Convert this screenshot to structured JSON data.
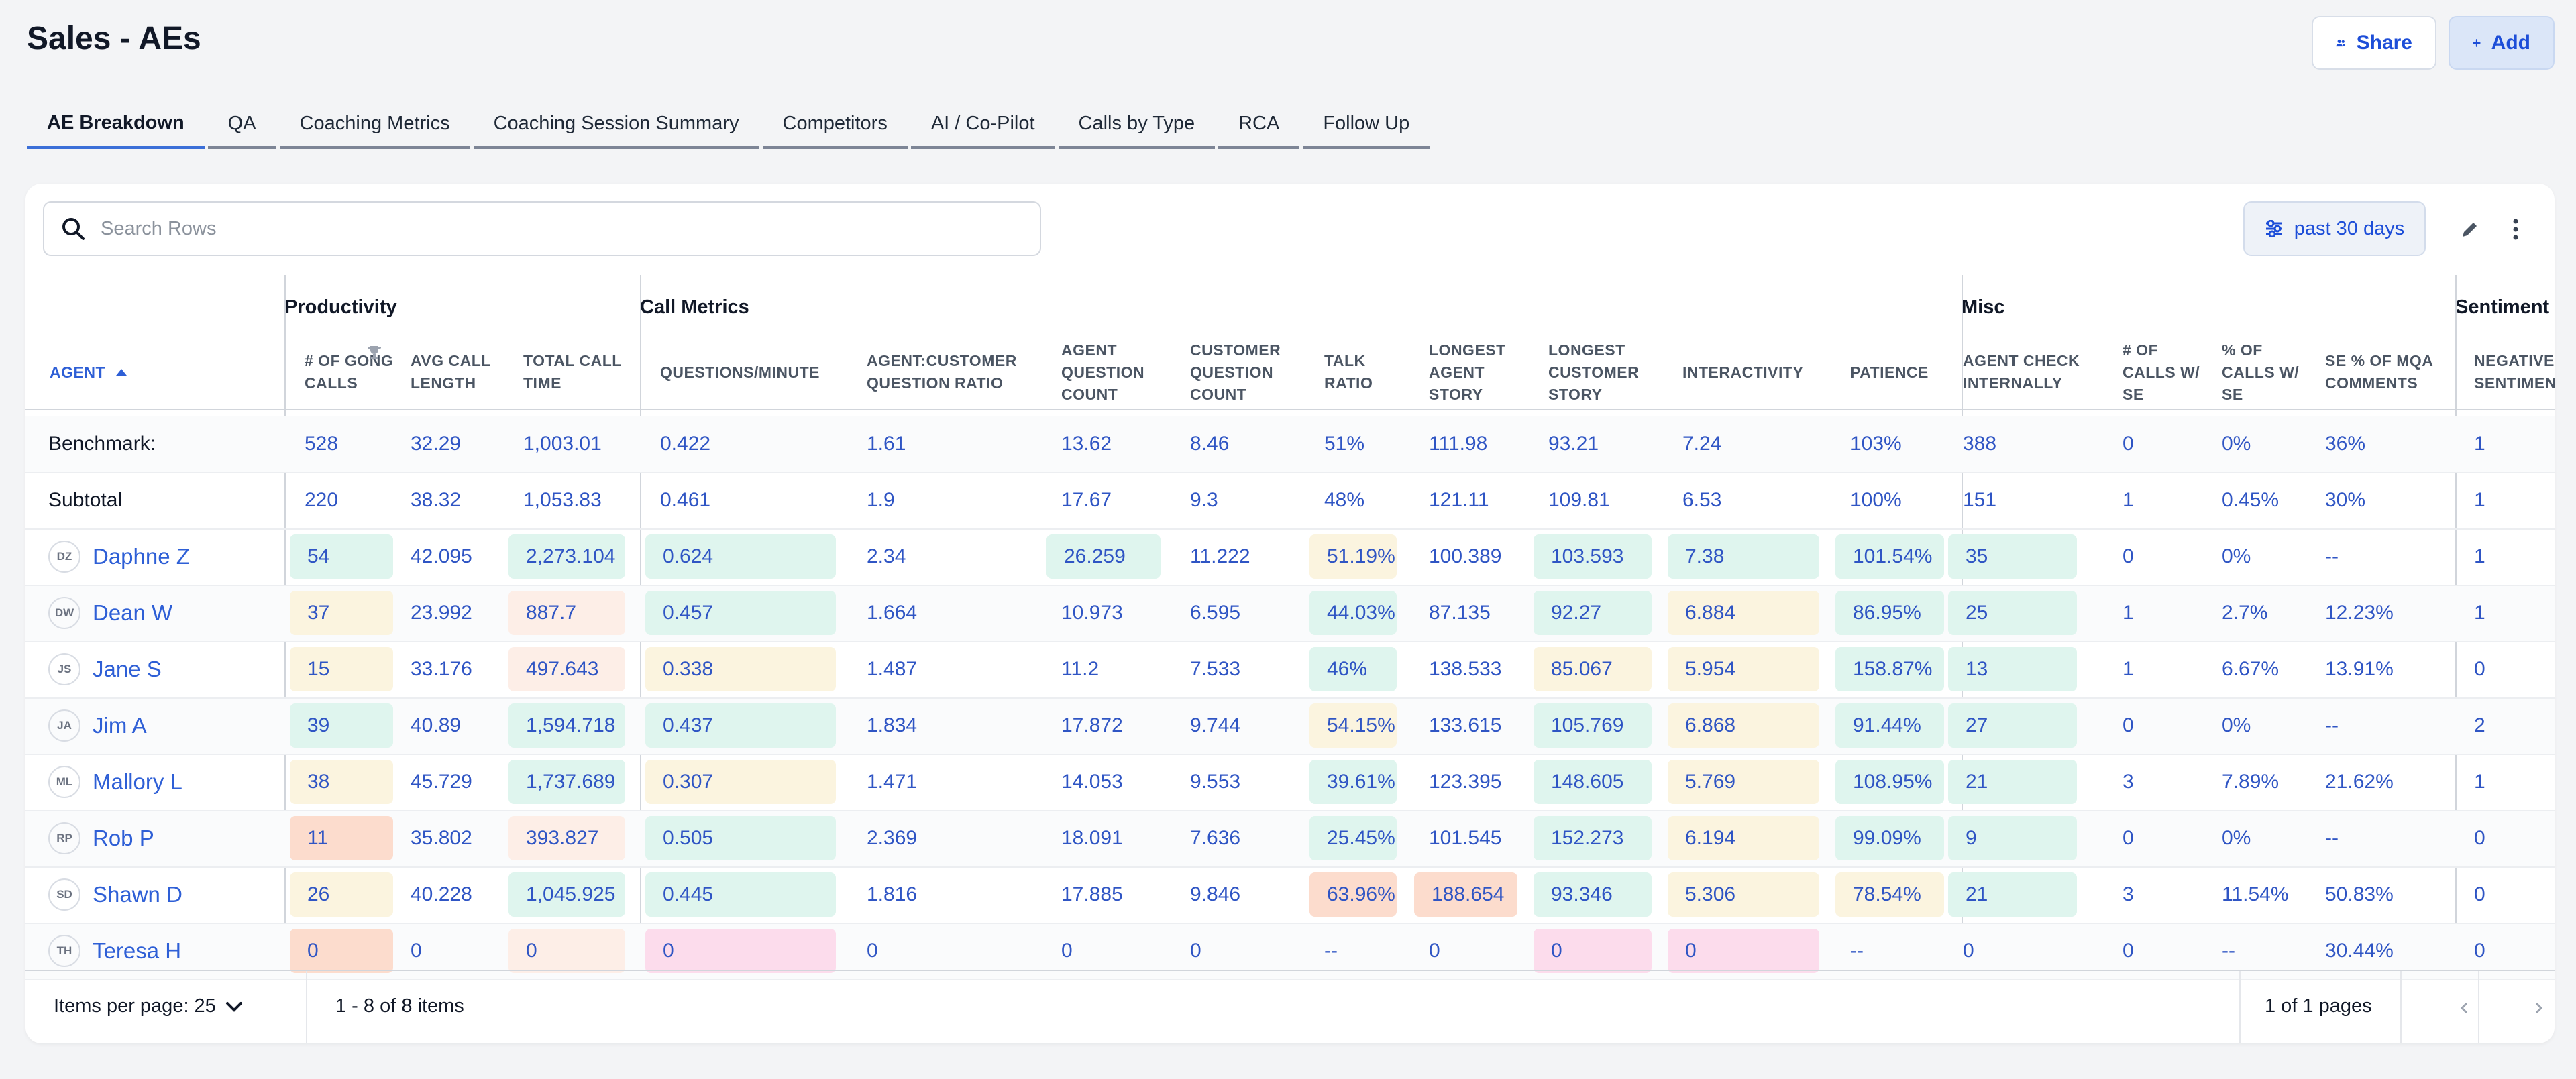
{
  "page_title": "Sales - AEs",
  "header": {
    "share_label": "Share",
    "add_label": "Add",
    "colors": {
      "accent": "#1d4ed8",
      "active_tab": "#3b6fd8"
    }
  },
  "tabs": [
    {
      "label": "AE Breakdown",
      "active": true
    },
    {
      "label": "QA",
      "active": false
    },
    {
      "label": "Coaching Metrics",
      "active": false
    },
    {
      "label": "Coaching Session Summary",
      "active": false
    },
    {
      "label": "Competitors",
      "active": false
    },
    {
      "label": "AI / Co-Pilot",
      "active": false
    },
    {
      "label": "Calls by Type",
      "active": false
    },
    {
      "label": "RCA",
      "active": false
    },
    {
      "label": "Follow Up",
      "active": false
    }
  ],
  "toolbar": {
    "search_placeholder": "Search Rows",
    "date_range": "past 30 days",
    "icons": [
      "search-icon",
      "sliders-icon",
      "pencil-icon",
      "more-vertical-icon"
    ]
  },
  "table": {
    "groups": [
      "Productivity",
      "Call Metrics",
      "Misc",
      "Sentiment"
    ],
    "agent_header": "AGENT",
    "agent_sort": "ascending",
    "columns": [
      "# OF GONG CALLS",
      "AVG CALL LENGTH",
      "TOTAL CALL TIME",
      "QUESTIONS/MINUTE",
      "AGENT:CUSTOMER QUESTION RATIO",
      "AGENT QUESTION COUNT",
      "CUSTOMER QUESTION COUNT",
      "TALK RATIO",
      "LONGEST AGENT STORY",
      "LONGEST CUSTOMER STORY",
      "INTERACTIVITY",
      "PATIENCE",
      "AGENT CHECK INTERNALLY",
      "# OF CALLS W/ SE",
      "% OF CALLS W/ SE",
      "SE % OF MQA COMMENTS",
      "NEGATIVE SENTIMENT"
    ],
    "benchmark": {
      "label": "Benchmark:",
      "values": [
        "528",
        "32.29",
        "1,003.01",
        "0.422",
        "1.61",
        "13.62",
        "8.46",
        "51%",
        "111.98",
        "93.21",
        "7.24",
        "103%",
        "388",
        "0",
        "0%",
        "36%",
        "1"
      ]
    },
    "subtotal": {
      "label": "Subtotal",
      "values": [
        "220",
        "38.32",
        "1,053.83",
        "0.461",
        "1.9",
        "17.67",
        "9.3",
        "48%",
        "121.11",
        "109.81",
        "6.53",
        "100%",
        "151",
        "1",
        "0.45%",
        "30%",
        "1"
      ]
    },
    "rows": [
      {
        "initials": "DZ",
        "name": "Daphne Z",
        "values": [
          "54",
          "42.095",
          "2,273.104",
          "0.624",
          "2.34",
          "26.259",
          "11.222",
          "51.19%",
          "100.389",
          "103.593",
          "7.38",
          "101.54%",
          "35",
          "0",
          "0%",
          "--",
          "1"
        ],
        "colors": [
          "g",
          "",
          "g",
          "g",
          "",
          "g",
          "",
          "y",
          "",
          "g",
          "g",
          "g",
          "g",
          "",
          "",
          "",
          ""
        ]
      },
      {
        "initials": "DW",
        "name": "Dean W",
        "values": [
          "37",
          "23.992",
          "887.7",
          "0.457",
          "1.664",
          "10.973",
          "6.595",
          "44.03%",
          "87.135",
          "92.27",
          "6.884",
          "86.95%",
          "25",
          "1",
          "2.7%",
          "12.23%",
          "1"
        ],
        "colors": [
          "y",
          "",
          "op",
          "g",
          "",
          "",
          "",
          "g",
          "",
          "g",
          "y",
          "g",
          "g",
          "",
          "",
          "",
          ""
        ]
      },
      {
        "initials": "JS",
        "name": "Jane S",
        "values": [
          "15",
          "33.176",
          "497.643",
          "0.338",
          "1.487",
          "11.2",
          "7.533",
          "46%",
          "138.533",
          "85.067",
          "5.954",
          "158.87%",
          "13",
          "1",
          "6.67%",
          "13.91%",
          "0"
        ],
        "colors": [
          "y",
          "",
          "op",
          "y",
          "",
          "",
          "",
          "g",
          "",
          "y",
          "y",
          "g",
          "g",
          "",
          "",
          "",
          ""
        ]
      },
      {
        "initials": "JA",
        "name": "Jim A",
        "values": [
          "39",
          "40.89",
          "1,594.718",
          "0.437",
          "1.834",
          "17.872",
          "9.744",
          "54.15%",
          "133.615",
          "105.769",
          "6.868",
          "91.44%",
          "27",
          "0",
          "0%",
          "--",
          "2"
        ],
        "colors": [
          "g",
          "",
          "g",
          "g",
          "",
          "",
          "",
          "y",
          "",
          "g",
          "y",
          "g",
          "g",
          "",
          "",
          "",
          ""
        ]
      },
      {
        "initials": "ML",
        "name": "Mallory L",
        "values": [
          "38",
          "45.729",
          "1,737.689",
          "0.307",
          "1.471",
          "14.053",
          "9.553",
          "39.61%",
          "123.395",
          "148.605",
          "5.769",
          "108.95%",
          "21",
          "3",
          "7.89%",
          "21.62%",
          "1"
        ],
        "colors": [
          "y",
          "",
          "g",
          "y",
          "",
          "",
          "",
          "g",
          "",
          "g",
          "y",
          "g",
          "g",
          "",
          "",
          "",
          ""
        ]
      },
      {
        "initials": "RP",
        "name": "Rob P",
        "values": [
          "11",
          "35.802",
          "393.827",
          "0.505",
          "2.369",
          "18.091",
          "7.636",
          "25.45%",
          "101.545",
          "152.273",
          "6.194",
          "99.09%",
          "9",
          "0",
          "0%",
          "--",
          "0"
        ],
        "colors": [
          "o",
          "",
          "op",
          "g",
          "",
          "",
          "",
          "g",
          "",
          "g",
          "y",
          "g",
          "g",
          "",
          "",
          "",
          ""
        ]
      },
      {
        "initials": "SD",
        "name": "Shawn D",
        "values": [
          "26",
          "40.228",
          "1,045.925",
          "0.445",
          "1.816",
          "17.885",
          "9.846",
          "63.96%",
          "188.654",
          "93.346",
          "5.306",
          "78.54%",
          "21",
          "3",
          "11.54%",
          "50.83%",
          "0"
        ],
        "colors": [
          "y",
          "",
          "g",
          "g",
          "",
          "",
          "",
          "o",
          "o",
          "g",
          "y",
          "y",
          "g",
          "",
          "",
          "",
          ""
        ]
      },
      {
        "initials": "TH",
        "name": "Teresa H",
        "values": [
          "0",
          "0",
          "0",
          "0",
          "0",
          "0",
          "0",
          "--",
          "0",
          "0",
          "0",
          "--",
          "0",
          "0",
          "--",
          "30.44%",
          "0"
        ],
        "colors": [
          "o",
          "",
          "op",
          "p",
          "",
          "",
          "",
          "",
          "",
          "p",
          "p",
          "",
          "",
          "",
          "",
          "",
          ""
        ]
      }
    ]
  },
  "pagination": {
    "items_per_page": "Items per page: 25",
    "item_range": "1 - 8 of 8 items",
    "page_range": "1 of 1 pages"
  }
}
